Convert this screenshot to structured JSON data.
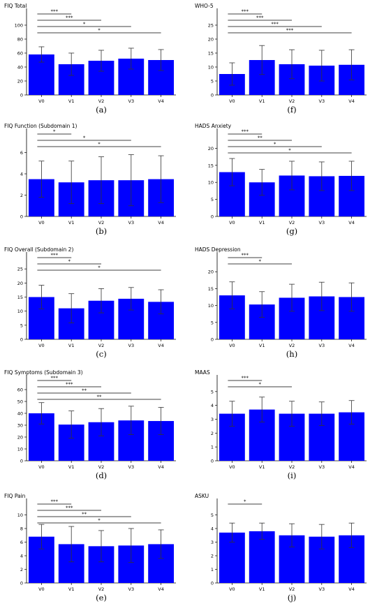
{
  "colors": {
    "bar": "#0000ff",
    "axis": "#000000",
    "error": "#333333"
  },
  "chart_data": [
    {
      "id": "a",
      "panel_label": "(a)",
      "title": "FIQ Total",
      "type": "bar",
      "categories": [
        "V0",
        "V1",
        "V2",
        "V3",
        "V4"
      ],
      "values": [
        58,
        44,
        49,
        52,
        50
      ],
      "errors": [
        11,
        16,
        15,
        15,
        15
      ],
      "ylim": [
        0,
        120
      ],
      "yticks": [
        "0",
        "20",
        "40",
        "60",
        "80",
        "100"
      ],
      "sig_lines": [
        {
          "from": "V0",
          "to": "V1",
          "label": "***"
        },
        {
          "from": "V0",
          "to": "V2",
          "label": "***"
        },
        {
          "from": "V0",
          "to": "V3",
          "label": "*"
        },
        {
          "from": "V0",
          "to": "V4",
          "label": "*"
        }
      ]
    },
    {
      "id": "f",
      "panel_label": "(f)",
      "title": "WHO-5",
      "type": "bar",
      "categories": [
        "V0",
        "V1",
        "V2",
        "V3",
        "V4"
      ],
      "values": [
        7.5,
        12.5,
        11,
        10.5,
        10.8
      ],
      "errors": [
        4,
        5.2,
        5.2,
        5.5,
        5.4
      ],
      "ylim": [
        0,
        30
      ],
      "yticks": [
        "0",
        "5",
        "10",
        "15",
        "20",
        "25"
      ],
      "sig_lines": [
        {
          "from": "V0",
          "to": "V1",
          "label": "***"
        },
        {
          "from": "V0",
          "to": "V2",
          "label": "***"
        },
        {
          "from": "V0",
          "to": "V3",
          "label": "***"
        },
        {
          "from": "V0",
          "to": "V4",
          "label": "***"
        }
      ]
    },
    {
      "id": "b",
      "panel_label": "(b)",
      "title": "FIQ Function (Subdomain 1)",
      "type": "bar",
      "categories": [
        "V0",
        "V1",
        "V2",
        "V3",
        "V4"
      ],
      "values": [
        3.5,
        3.2,
        3.4,
        3.4,
        3.5
      ],
      "errors": [
        1.7,
        2.0,
        2.2,
        2.4,
        2.2
      ],
      "ylim": [
        0,
        8
      ],
      "yticks": [
        "0",
        "2",
        "4",
        "6"
      ],
      "sig_lines": [
        {
          "from": "V0",
          "to": "V1",
          "label": "*"
        },
        {
          "from": "V0",
          "to": "V3",
          "label": "*"
        },
        {
          "from": "V0",
          "to": "V4",
          "label": "*"
        }
      ]
    },
    {
      "id": "g",
      "panel_label": "(g)",
      "title": "HADS Anxiety",
      "type": "bar",
      "categories": [
        "V0",
        "V1",
        "V2",
        "V3",
        "V4"
      ],
      "values": [
        13,
        10,
        12,
        11.8,
        11.9
      ],
      "errors": [
        4,
        3.8,
        4.2,
        4.2,
        4.3
      ],
      "ylim": [
        0,
        25
      ],
      "yticks": [
        "0",
        "5",
        "10",
        "15",
        "20"
      ],
      "sig_lines": [
        {
          "from": "V0",
          "to": "V1",
          "label": "***"
        },
        {
          "from": "V0",
          "to": "V2",
          "label": "**"
        },
        {
          "from": "V0",
          "to": "V3",
          "label": "*"
        },
        {
          "from": "V0",
          "to": "V4",
          "label": "*"
        }
      ]
    },
    {
      "id": "c",
      "panel_label": "(c)",
      "title": "FIQ Overall (Subdomain 2)",
      "type": "bar",
      "categories": [
        "V0",
        "V1",
        "V2",
        "V3",
        "V4"
      ],
      "values": [
        15,
        11,
        13.7,
        14.4,
        13.3
      ],
      "errors": [
        4.2,
        5.2,
        4.3,
        4,
        4.3
      ],
      "ylim": [
        0,
        30
      ],
      "yticks": [
        "0",
        "5",
        "10",
        "15",
        "20",
        "25"
      ],
      "sig_lines": [
        {
          "from": "V0",
          "to": "V1",
          "label": "***"
        },
        {
          "from": "V0",
          "to": "V2",
          "label": "*"
        },
        {
          "from": "V0",
          "to": "V4",
          "label": "*"
        }
      ]
    },
    {
      "id": "h",
      "panel_label": "(h)",
      "title": "HADS Depression",
      "type": "bar",
      "categories": [
        "V0",
        "V1",
        "V2",
        "V3",
        "V4"
      ],
      "values": [
        13,
        10.3,
        12.3,
        12.7,
        12.5
      ],
      "errors": [
        4,
        3.8,
        4,
        4.2,
        4.2
      ],
      "ylim": [
        0,
        25
      ],
      "yticks": [
        "0",
        "5",
        "10",
        "15",
        "20"
      ],
      "sig_lines": [
        {
          "from": "V0",
          "to": "V1",
          "label": "***"
        },
        {
          "from": "V0",
          "to": "V2",
          "label": "*"
        }
      ]
    },
    {
      "id": "d",
      "panel_label": "(d)",
      "title": "FIQ Symptoms (Subdomain 3)",
      "type": "bar",
      "categories": [
        "V0",
        "V1",
        "V2",
        "V3",
        "V4"
      ],
      "values": [
        40,
        30.5,
        32.5,
        34,
        33.5
      ],
      "errors": [
        9,
        11.5,
        11.5,
        12,
        11.5
      ],
      "ylim": [
        0,
        70
      ],
      "yticks": [
        "0",
        "10",
        "20",
        "30",
        "40",
        "50",
        "60"
      ],
      "sig_lines": [
        {
          "from": "V0",
          "to": "V1",
          "label": "***"
        },
        {
          "from": "V0",
          "to": "V2",
          "label": "***"
        },
        {
          "from": "V0",
          "to": "V3",
          "label": "**"
        },
        {
          "from": "V0",
          "to": "V4",
          "label": "**"
        }
      ]
    },
    {
      "id": "i",
      "panel_label": "(i)",
      "title": "MAAS",
      "type": "bar",
      "categories": [
        "V0",
        "V1",
        "V2",
        "V3",
        "V4"
      ],
      "values": [
        3.4,
        3.7,
        3.4,
        3.4,
        3.5
      ],
      "errors": [
        0.9,
        0.9,
        0.9,
        0.85,
        0.85
      ],
      "ylim": [
        0,
        6
      ],
      "yticks": [
        "0",
        "1",
        "2",
        "3",
        "4",
        "5"
      ],
      "sig_lines": [
        {
          "from": "V0",
          "to": "V1",
          "label": "***"
        },
        {
          "from": "V0",
          "to": "V2",
          "label": "*"
        }
      ]
    },
    {
      "id": "e",
      "panel_label": "(e)",
      "title": "FIQ Pain",
      "type": "bar",
      "categories": [
        "V0",
        "V1",
        "V2",
        "V3",
        "V4"
      ],
      "values": [
        6.8,
        5.7,
        5.4,
        5.5,
        5.7
      ],
      "errors": [
        1.8,
        2.6,
        2.3,
        2.5,
        2.1
      ],
      "ylim": [
        0,
        12
      ],
      "yticks": [
        "0",
        "2",
        "4",
        "6",
        "8",
        "10"
      ],
      "sig_lines": [
        {
          "from": "V0",
          "to": "V1",
          "label": "***"
        },
        {
          "from": "V0",
          "to": "V2",
          "label": "***"
        },
        {
          "from": "V0",
          "to": "V3",
          "label": "**"
        },
        {
          "from": "V0",
          "to": "V4",
          "label": "*"
        }
      ]
    },
    {
      "id": "j",
      "panel_label": "(j)",
      "title": "ASKU",
      "type": "bar",
      "categories": [
        "V0",
        "V1",
        "V2",
        "V3",
        "V4"
      ],
      "values": [
        3.7,
        3.8,
        3.5,
        3.4,
        3.5
      ],
      "errors": [
        0.7,
        0.6,
        0.85,
        0.9,
        0.9
      ],
      "ylim": [
        0,
        6
      ],
      "yticks": [
        "0",
        "1",
        "2",
        "3",
        "4",
        "5"
      ],
      "sig_lines": [
        {
          "from": "V0",
          "to": "V1",
          "label": "*"
        }
      ]
    }
  ]
}
